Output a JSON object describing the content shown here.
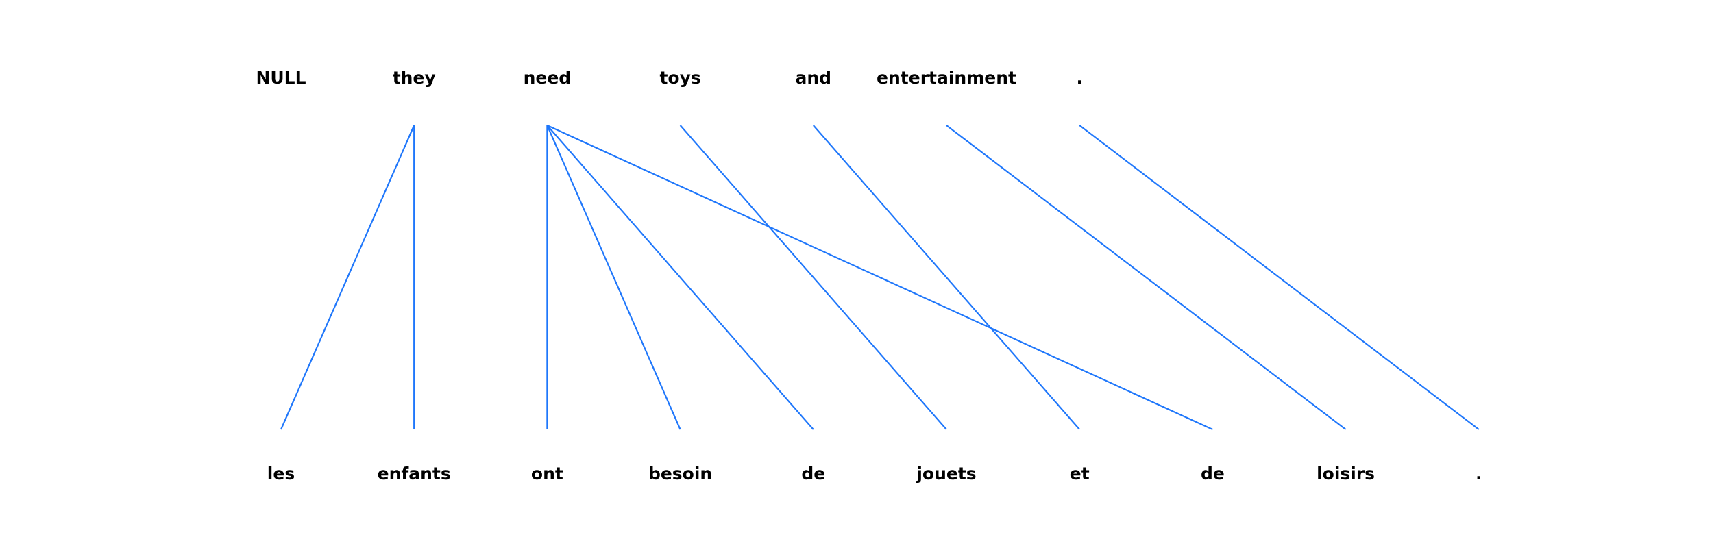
{
  "source_words": [
    "NULL",
    "they",
    "need",
    "toys",
    "and",
    "entertainment",
    "."
  ],
  "target_words": [
    "les",
    "enfants",
    "ont",
    "besoin",
    "de",
    "jouets",
    "et",
    "de",
    "loisirs",
    "."
  ],
  "alignments": [
    [
      1,
      0
    ],
    [
      1,
      1
    ],
    [
      2,
      2
    ],
    [
      2,
      3
    ],
    [
      2,
      4
    ],
    [
      2,
      7
    ],
    [
      3,
      5
    ],
    [
      4,
      6
    ],
    [
      5,
      8
    ],
    [
      6,
      9
    ]
  ],
  "colors": {
    "line": "#1f77fb",
    "text": "#000000"
  }
}
